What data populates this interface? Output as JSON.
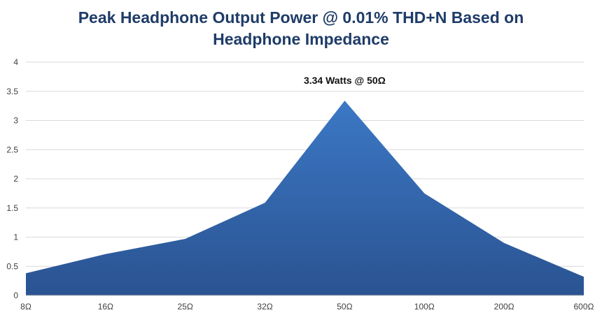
{
  "chart_data": {
    "type": "area",
    "title_line1": "Peak Headphone Output Power @ 0.01% THD+N Based on",
    "title_line2": "Headphone Impedance",
    "categories": [
      "8Ω",
      "16Ω",
      "25Ω",
      "32Ω",
      "50Ω",
      "100Ω",
      "200Ω",
      "600Ω"
    ],
    "series": [
      {
        "values": [
          0.38,
          0.71,
          0.97,
          1.59,
          3.34,
          1.75,
          0.9,
          0.32
        ]
      }
    ],
    "ylim": [
      0,
      4
    ],
    "yticks": [
      "0",
      "0.5",
      "1",
      "1.5",
      "2",
      "2.5",
      "3",
      "3.5",
      "4"
    ],
    "grid": true,
    "annotation": {
      "text": "3.34 Watts @ 50Ω",
      "category": "50Ω"
    },
    "fill_color_top": "#3f7fcf",
    "fill_color_bottom": "#2a5391"
  }
}
